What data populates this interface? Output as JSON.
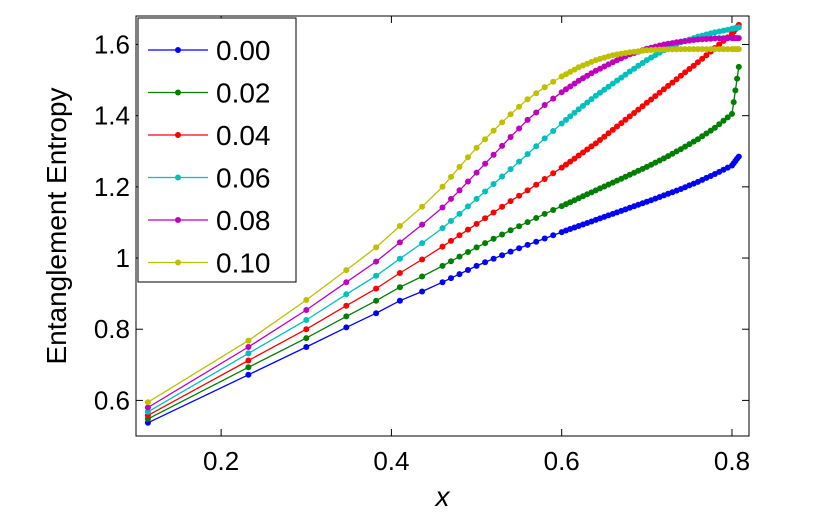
{
  "chart_data": {
    "type": "line",
    "xlabel": "x",
    "ylabel": "Entanglement Entropy",
    "xlim": [
      0.1,
      0.82
    ],
    "ylim": [
      0.5,
      1.68
    ],
    "xticks": [
      0.2,
      0.4,
      0.6,
      0.8
    ],
    "xtick_labels": [
      "0.2",
      "0.4",
      "0.6",
      "0.8"
    ],
    "yticks": [
      0.6,
      0.8,
      1.0,
      1.2,
      1.4,
      1.6
    ],
    "ytick_labels": [
      "0.6",
      "0.8",
      "1",
      "1.2",
      "1.4",
      "1.6"
    ],
    "grid": false,
    "legend_position": "top-left",
    "series": [
      {
        "name": "0.00",
        "color": "#0000ff",
        "points": [
          [
            0.114,
            0.537
          ],
          [
            0.232,
            0.672
          ],
          [
            0.3,
            0.75
          ],
          [
            0.347,
            0.805
          ],
          [
            0.382,
            0.845
          ],
          [
            0.41,
            0.88
          ],
          [
            0.436,
            0.906
          ],
          [
            0.46,
            0.932
          ],
          [
            0.48,
            0.955
          ],
          [
            0.5,
            0.978
          ],
          [
            0.52,
            0.998
          ],
          [
            0.54,
            1.018
          ],
          [
            0.56,
            1.037
          ],
          [
            0.58,
            1.055
          ],
          [
            0.6,
            1.073
          ],
          [
            0.62,
            1.09
          ],
          [
            0.64,
            1.107
          ],
          [
            0.66,
            1.124
          ],
          [
            0.68,
            1.141
          ],
          [
            0.7,
            1.158
          ],
          [
            0.72,
            1.176
          ],
          [
            0.74,
            1.194
          ],
          [
            0.76,
            1.214
          ],
          [
            0.78,
            1.236
          ],
          [
            0.8,
            1.26
          ],
          [
            0.808,
            1.285
          ]
        ]
      },
      {
        "name": "0.02",
        "color": "#007f00",
        "points": [
          [
            0.114,
            0.548
          ],
          [
            0.232,
            0.693
          ],
          [
            0.3,
            0.775
          ],
          [
            0.347,
            0.836
          ],
          [
            0.382,
            0.88
          ],
          [
            0.41,
            0.918
          ],
          [
            0.436,
            0.948
          ],
          [
            0.46,
            0.978
          ],
          [
            0.48,
            1.004
          ],
          [
            0.5,
            1.03
          ],
          [
            0.52,
            1.054
          ],
          [
            0.54,
            1.078
          ],
          [
            0.56,
            1.101
          ],
          [
            0.58,
            1.124
          ],
          [
            0.6,
            1.146
          ],
          [
            0.62,
            1.168
          ],
          [
            0.64,
            1.19
          ],
          [
            0.66,
            1.212
          ],
          [
            0.68,
            1.234
          ],
          [
            0.7,
            1.256
          ],
          [
            0.72,
            1.28
          ],
          [
            0.74,
            1.306
          ],
          [
            0.76,
            1.334
          ],
          [
            0.78,
            1.366
          ],
          [
            0.8,
            1.405
          ],
          [
            0.808,
            1.537
          ]
        ]
      },
      {
        "name": "0.04",
        "color": "#ff0000",
        "points": [
          [
            0.114,
            0.558
          ],
          [
            0.232,
            0.712
          ],
          [
            0.3,
            0.8
          ],
          [
            0.347,
            0.866
          ],
          [
            0.382,
            0.914
          ],
          [
            0.41,
            0.958
          ],
          [
            0.436,
            0.996
          ],
          [
            0.46,
            1.032
          ],
          [
            0.48,
            1.064
          ],
          [
            0.5,
            1.096
          ],
          [
            0.52,
            1.128
          ],
          [
            0.54,
            1.16
          ],
          [
            0.56,
            1.19
          ],
          [
            0.58,
            1.222
          ],
          [
            0.6,
            1.254
          ],
          [
            0.62,
            1.288
          ],
          [
            0.64,
            1.322
          ],
          [
            0.66,
            1.36
          ],
          [
            0.68,
            1.398
          ],
          [
            0.7,
            1.436
          ],
          [
            0.72,
            1.474
          ],
          [
            0.74,
            1.512
          ],
          [
            0.76,
            1.55
          ],
          [
            0.78,
            1.59
          ],
          [
            0.8,
            1.63
          ],
          [
            0.808,
            1.655
          ]
        ]
      },
      {
        "name": "0.06",
        "color": "#00bfbf",
        "points": [
          [
            0.114,
            0.568
          ],
          [
            0.232,
            0.732
          ],
          [
            0.3,
            0.826
          ],
          [
            0.347,
            0.898
          ],
          [
            0.382,
            0.95
          ],
          [
            0.41,
            0.998
          ],
          [
            0.436,
            1.042
          ],
          [
            0.46,
            1.084
          ],
          [
            0.48,
            1.124
          ],
          [
            0.5,
            1.166
          ],
          [
            0.52,
            1.208
          ],
          [
            0.54,
            1.25
          ],
          [
            0.56,
            1.292
          ],
          [
            0.58,
            1.336
          ],
          [
            0.6,
            1.378
          ],
          [
            0.62,
            1.418
          ],
          [
            0.64,
            1.456
          ],
          [
            0.66,
            1.49
          ],
          [
            0.68,
            1.524
          ],
          [
            0.7,
            1.556
          ],
          [
            0.72,
            1.584
          ],
          [
            0.74,
            1.606
          ],
          [
            0.76,
            1.622
          ],
          [
            0.78,
            1.634
          ],
          [
            0.8,
            1.644
          ],
          [
            0.808,
            1.648
          ]
        ]
      },
      {
        "name": "0.08",
        "color": "#bf00bf",
        "points": [
          [
            0.114,
            0.58
          ],
          [
            0.232,
            0.75
          ],
          [
            0.3,
            0.854
          ],
          [
            0.347,
            0.932
          ],
          [
            0.382,
            0.99
          ],
          [
            0.41,
            1.044
          ],
          [
            0.436,
            1.094
          ],
          [
            0.46,
            1.142
          ],
          [
            0.48,
            1.19
          ],
          [
            0.5,
            1.24
          ],
          [
            0.52,
            1.29
          ],
          [
            0.54,
            1.34
          ],
          [
            0.56,
            1.388
          ],
          [
            0.58,
            1.43
          ],
          [
            0.6,
            1.466
          ],
          [
            0.62,
            1.498
          ],
          [
            0.64,
            1.526
          ],
          [
            0.66,
            1.55
          ],
          [
            0.68,
            1.572
          ],
          [
            0.7,
            1.588
          ],
          [
            0.72,
            1.6
          ],
          [
            0.74,
            1.608
          ],
          [
            0.76,
            1.614
          ],
          [
            0.78,
            1.617
          ],
          [
            0.8,
            1.618
          ],
          [
            0.808,
            1.618
          ]
        ]
      },
      {
        "name": "0.10",
        "color": "#bfbf00",
        "points": [
          [
            0.114,
            0.595
          ],
          [
            0.232,
            0.768
          ],
          [
            0.3,
            0.882
          ],
          [
            0.347,
            0.966
          ],
          [
            0.382,
            1.03
          ],
          [
            0.41,
            1.09
          ],
          [
            0.436,
            1.144
          ],
          [
            0.46,
            1.2
          ],
          [
            0.48,
            1.256
          ],
          [
            0.5,
            1.31
          ],
          [
            0.52,
            1.358
          ],
          [
            0.54,
            1.404
          ],
          [
            0.56,
            1.446
          ],
          [
            0.58,
            1.48
          ],
          [
            0.6,
            1.51
          ],
          [
            0.62,
            1.536
          ],
          [
            0.64,
            1.556
          ],
          [
            0.66,
            1.57
          ],
          [
            0.68,
            1.578
          ],
          [
            0.7,
            1.584
          ],
          [
            0.72,
            1.586
          ],
          [
            0.74,
            1.587
          ],
          [
            0.76,
            1.587
          ],
          [
            0.78,
            1.587
          ],
          [
            0.8,
            1.587
          ],
          [
            0.808,
            1.587
          ]
        ]
      }
    ]
  }
}
